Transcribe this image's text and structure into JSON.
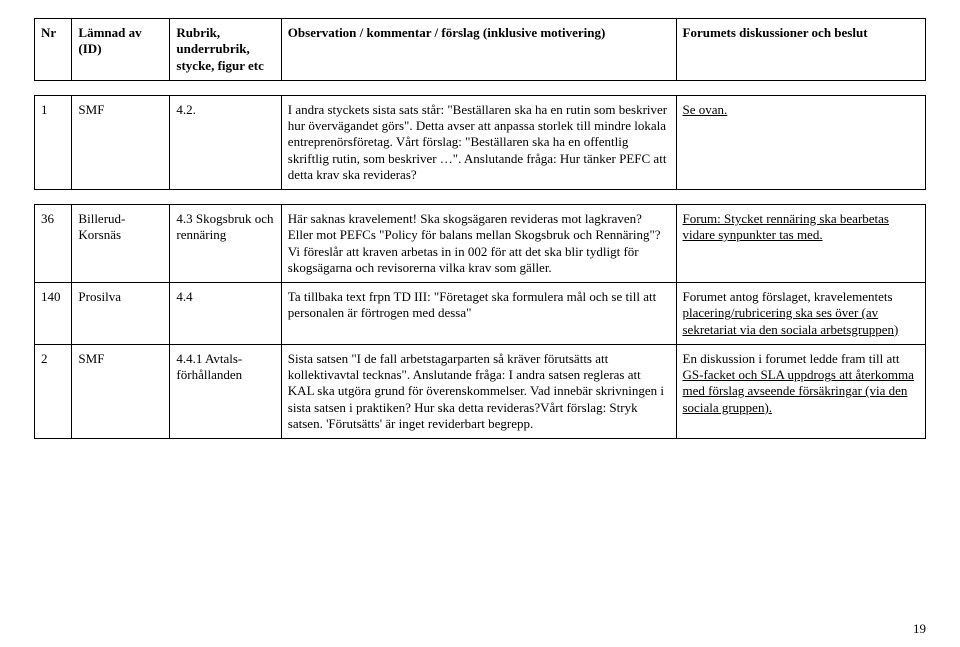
{
  "header": {
    "nr": "Nr",
    "lamnad": "Lämnad av (ID)",
    "rubrik": "Rubrik, underrubrik, stycke, figur etc",
    "observation": "Observation / kommentar / förslag (inklusive motivering)",
    "forum": "Forumets diskussioner och beslut"
  },
  "rows": [
    {
      "nr": "1",
      "lamnad": "SMF",
      "rubrik": "4.2.",
      "observation": "I andra styckets sista sats står: \"Beställaren ska ha en rutin som beskriver hur övervägandet görs\". Detta avser att anpassa storlek till mindre lokala entreprenörsföretag.\nVårt förslag: \"Beställaren ska ha en offentlig skriftlig rutin, som beskriver …\".\nAnslutande fråga: Hur tänker PEFC att detta krav ska revideras?",
      "forum": "Se ovan."
    },
    {
      "nr": "36",
      "lamnad": "Billerud-Korsnäs",
      "rubrik": "4.3 Skogsbruk och rennäring",
      "observation": "Här saknas kravelement! Ska skogsägaren revideras mot lagkraven? Eller mot PEFCs \"Policy för balans mellan Skogsbruk och Rennäring\"? Vi föreslår att kraven arbetas in in 002 för att det ska blir tydligt för skogsägarna och revisorerna vilka krav som gäller.",
      "forum": "Forum: Stycket rennäring ska bearbetas vidare synpunkter tas med."
    },
    {
      "nr": "140",
      "lamnad": "Prosilva",
      "rubrik": "4.4",
      "observation": "Ta tillbaka text frpn TD III: \"Företaget ska formulera mål och se till att personalen är förtrogen med dessa\"",
      "forum_pre": "Forumet antog förslaget, kravelementets ",
      "forum_u": "placering/rubricering ska ses över (av sekretariat via den sociala arbetsgruppen)"
    },
    {
      "nr": "2",
      "lamnad": "SMF",
      "rubrik": "4.4.1 Avtals-förhållanden",
      "observation": "Sista satsen \"I de fall arbetstagarparten så kräver förutsätts att kollektivavtal tecknas\". Anslutande fråga: I andra satsen regleras att KAL ska utgöra grund för överenskommelser. Vad innebär skrivningen i sista satsen i praktiken? Hur ska detta revideras?Vårt förslag: Stryk satsen. 'Förutsätts' är inget reviderbart begrepp.",
      "forum_pre": "En diskussion i forumet ledde fram till att ",
      "forum_u": "GS-facket och SLA uppdrogs att återkomma med förslag avseende försäkringar (via den sociala gruppen)."
    }
  ],
  "page_number": "19"
}
